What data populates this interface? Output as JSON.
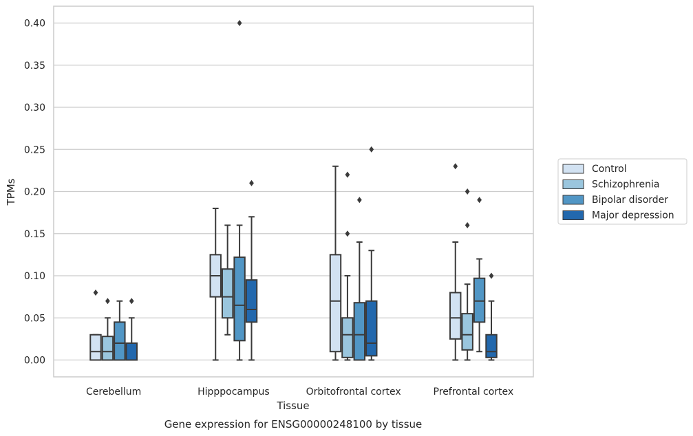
{
  "chart_data": {
    "type": "box",
    "title": "",
    "caption": "Gene expression for ENSG00000248100 by tissue",
    "xlabel": "Tissue",
    "ylabel": "TPMs",
    "ylim": [
      -0.02,
      0.42
    ],
    "yticks": [
      0.0,
      0.05,
      0.1,
      0.15,
      0.2,
      0.25,
      0.3,
      0.35,
      0.4
    ],
    "ytick_labels": [
      "0.00",
      "0.05",
      "0.10",
      "0.15",
      "0.20",
      "0.25",
      "0.30",
      "0.35",
      "0.40"
    ],
    "grid": "horizontal",
    "legend_position": "right",
    "categories": [
      "Cerebellum",
      "Hipppocampus",
      "Orbitofrontal cortex",
      "Prefrontal cortex"
    ],
    "series": [
      {
        "name": "Control",
        "color": "#d2e2f2",
        "boxes": [
          {
            "whislo": 0.0,
            "q1": 0.0,
            "med": 0.01,
            "q3": 0.03,
            "whishi": 0.03,
            "fliers": [
              0.08
            ]
          },
          {
            "whislo": 0.0,
            "q1": 0.075,
            "med": 0.1,
            "q3": 0.125,
            "whishi": 0.18,
            "fliers": []
          },
          {
            "whislo": 0.0,
            "q1": 0.01,
            "med": 0.07,
            "q3": 0.125,
            "whishi": 0.23,
            "fliers": []
          },
          {
            "whislo": 0.0,
            "q1": 0.025,
            "med": 0.05,
            "q3": 0.08,
            "whishi": 0.14,
            "fliers": [
              0.23
            ]
          }
        ]
      },
      {
        "name": "Schizophrenia",
        "color": "#9ac6de",
        "boxes": [
          {
            "whislo": 0.0,
            "q1": 0.0,
            "med": 0.01,
            "q3": 0.028,
            "whishi": 0.05,
            "fliers": [
              0.07
            ]
          },
          {
            "whislo": 0.03,
            "q1": 0.05,
            "med": 0.075,
            "q3": 0.108,
            "whishi": 0.16,
            "fliers": []
          },
          {
            "whislo": 0.0,
            "q1": 0.003,
            "med": 0.03,
            "q3": 0.05,
            "whishi": 0.1,
            "fliers": [
              0.15,
              0.22
            ]
          },
          {
            "whislo": 0.0,
            "q1": 0.012,
            "med": 0.03,
            "q3": 0.055,
            "whishi": 0.09,
            "fliers": [
              0.16,
              0.2
            ]
          }
        ]
      },
      {
        "name": "Bipolar disorder",
        "color": "#5196c5",
        "boxes": [
          {
            "whislo": 0.0,
            "q1": 0.0,
            "med": 0.02,
            "q3": 0.045,
            "whishi": 0.07,
            "fliers": []
          },
          {
            "whislo": 0.0,
            "q1": 0.023,
            "med": 0.065,
            "q3": 0.122,
            "whishi": 0.16,
            "fliers": [
              0.4
            ]
          },
          {
            "whislo": 0.0,
            "q1": 0.0,
            "med": 0.03,
            "q3": 0.068,
            "whishi": 0.14,
            "fliers": [
              0.19
            ]
          },
          {
            "whislo": 0.01,
            "q1": 0.045,
            "med": 0.07,
            "q3": 0.097,
            "whishi": 0.12,
            "fliers": [
              0.19
            ]
          }
        ]
      },
      {
        "name": "Major depression",
        "color": "#2268ad",
        "boxes": [
          {
            "whislo": 0.0,
            "q1": 0.0,
            "med": 0.02,
            "q3": 0.02,
            "whishi": 0.05,
            "fliers": [
              0.07
            ]
          },
          {
            "whislo": 0.0,
            "q1": 0.045,
            "med": 0.06,
            "q3": 0.095,
            "whishi": 0.17,
            "fliers": [
              0.21
            ]
          },
          {
            "whislo": 0.0,
            "q1": 0.005,
            "med": 0.02,
            "q3": 0.07,
            "whishi": 0.13,
            "fliers": [
              0.25
            ]
          },
          {
            "whislo": 0.0,
            "q1": 0.003,
            "med": 0.01,
            "q3": 0.03,
            "whishi": 0.07,
            "fliers": [
              0.1
            ]
          }
        ]
      }
    ]
  }
}
